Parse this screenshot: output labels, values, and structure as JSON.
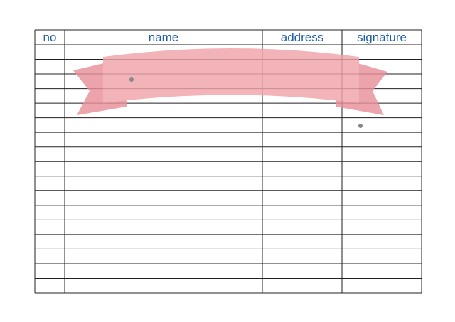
{
  "table": {
    "headers": [
      "no",
      "name",
      "address",
      "signature"
    ]
  }
}
